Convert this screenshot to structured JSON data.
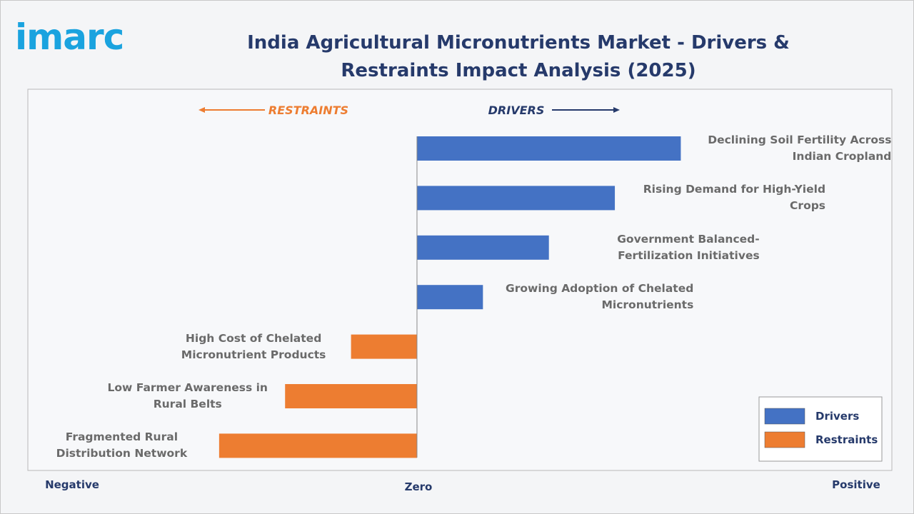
{
  "logo": "imarc",
  "chart_data": {
    "type": "diverging-bar",
    "title": "India Agricultural Micronutrients Market - Drivers & Restraints Impact Analysis (2025)",
    "annotations": [
      "RESTRAINTS",
      "DRIVERS"
    ],
    "x_labels": [
      "Negative",
      "Zero",
      "Positive"
    ],
    "categories": [
      "Declining Soil Fertility Across Indian Cropland",
      "Rising Demand for High-Yield Crops",
      "Government Balanced-Fertilization Initiatives",
      "Growing Adoption of Chelated Micronutrients",
      "High Cost of Chelated Micronutrient Products",
      "Low Farmer Awareness in Rural Belts",
      "Fragmented Rural Distribution Network"
    ],
    "series": [
      {
        "name": "Drivers",
        "color": "#4472c4",
        "values": [
          4,
          3,
          2,
          1,
          null,
          null,
          null
        ]
      },
      {
        "name": "Restraints",
        "color": "#ed7d31",
        "values": [
          null,
          null,
          null,
          null,
          -1,
          -2,
          -3
        ]
      }
    ],
    "xlim": [
      -5.9,
      7.2
    ],
    "legend": "bottom-right"
  }
}
